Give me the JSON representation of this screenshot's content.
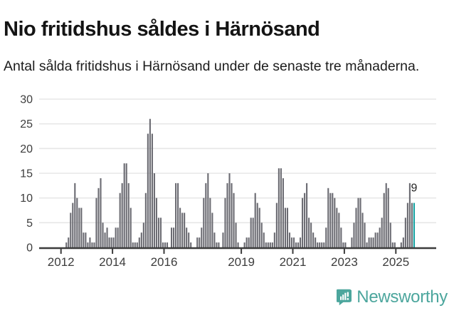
{
  "title": "Nio fritidshus såldes i Härnösand",
  "subtitle": "Antal sålda fritidshus i Härnösand under de senaste tre månaderna.",
  "logo": {
    "text": "Newsworthy"
  },
  "colors": {
    "bar": "#6B6B72",
    "highlight": "#13A1A1",
    "grid": "#E7E7E7",
    "axis": "#3C3C3C",
    "tick_label": "#3D3D3D",
    "annotation": "#222222",
    "brand": "#4CA69D"
  },
  "chart_data": {
    "type": "bar",
    "title": "Nio fritidshus såldes i Härnösand",
    "subtitle": "Antal sålda fritidshus i Härnösand under de senaste tre månaderna.",
    "ylabel": "",
    "xlabel": "",
    "ylim": [
      0,
      30
    ],
    "yticks": [
      0,
      5,
      10,
      15,
      20,
      25,
      30
    ],
    "grid": "horizontal",
    "legend": "none",
    "start_month": "2012-01",
    "end_month": "2025-09",
    "x_tick_labels": [
      "2012",
      "2014",
      "2016",
      "2019",
      "2021",
      "2023",
      "2025"
    ],
    "x_tick_month_offsets": [
      0,
      24,
      48,
      84,
      108,
      132,
      156
    ],
    "values": [
      0,
      0,
      1,
      2,
      7,
      9,
      13,
      10,
      8,
      8,
      3,
      3,
      1,
      2,
      1,
      1,
      10,
      12,
      14,
      5,
      3,
      4,
      2,
      2,
      2,
      4,
      4,
      11,
      13,
      17,
      17,
      13,
      8,
      1,
      1,
      1,
      2,
      3,
      5,
      11,
      23,
      26,
      23,
      15,
      10,
      6,
      6,
      1,
      1,
      1,
      0,
      4,
      4,
      13,
      13,
      8,
      7,
      7,
      4,
      3,
      1,
      0,
      0,
      2,
      2,
      4,
      10,
      13,
      15,
      10,
      7,
      3,
      1,
      1,
      0,
      3,
      10,
      13,
      15,
      13,
      11,
      5,
      1,
      0,
      0,
      1,
      2,
      2,
      6,
      6,
      11,
      9,
      8,
      5,
      3,
      1,
      1,
      1,
      1,
      3,
      9,
      16,
      16,
      14,
      8,
      8,
      3,
      2,
      2,
      1,
      1,
      2,
      10,
      11,
      13,
      6,
      5,
      3,
      2,
      1,
      1,
      1,
      1,
      4,
      12,
      11,
      11,
      10,
      8,
      7,
      4,
      1,
      1,
      0,
      0,
      2,
      5,
      8,
      10,
      10,
      7,
      5,
      1,
      2,
      2,
      2,
      3,
      3,
      4,
      6,
      11,
      13,
      12,
      5,
      1,
      1,
      0,
      0,
      1,
      2,
      6,
      9,
      13,
      9,
      9
    ],
    "highlight_last_bar": true,
    "highlight_value": 9,
    "annotation_label": "9"
  }
}
